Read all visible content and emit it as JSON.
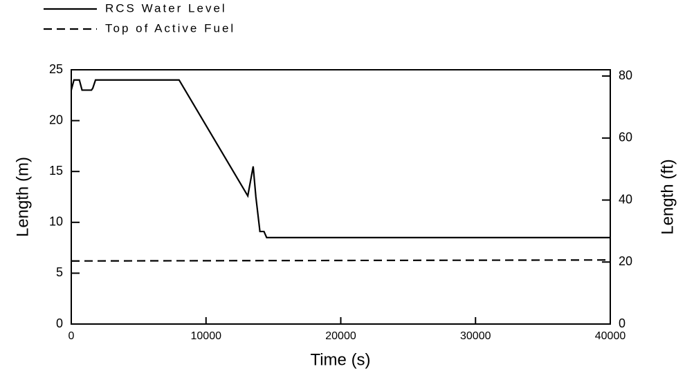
{
  "chart_data": {
    "type": "line",
    "x_label": "Time (s)",
    "y_label": "Length (m)",
    "y2_label": "Length (ft)",
    "xlim": [
      0,
      40000
    ],
    "xticks": [
      0,
      10000,
      20000,
      30000,
      40000
    ],
    "ylim": [
      0,
      25
    ],
    "yticks": [
      0,
      5,
      10,
      15,
      20,
      25
    ],
    "y2lim": [
      0,
      82.02
    ],
    "y2ticks": [
      0,
      20,
      40,
      60,
      80
    ],
    "grid": false,
    "legend": "top-left",
    "series": [
      {
        "name": "RCS Water Level",
        "color": "#000000",
        "linestyle": "solid",
        "x": [
          0,
          200,
          600,
          800,
          1500,
          1600,
          1800,
          8000,
          13100,
          13500,
          13700,
          14000,
          14300,
          14500,
          40000
        ],
        "values": [
          23.0,
          24.0,
          24.0,
          23.0,
          23.0,
          23.2,
          24.0,
          24.0,
          12.6,
          15.5,
          12.5,
          9.1,
          9.1,
          8.5,
          8.5
        ]
      },
      {
        "name": "Top of Active Fuel",
        "color": "#000000",
        "linestyle": "dashed",
        "x": [
          0,
          40000
        ],
        "values": [
          6.2,
          6.3
        ]
      }
    ]
  }
}
